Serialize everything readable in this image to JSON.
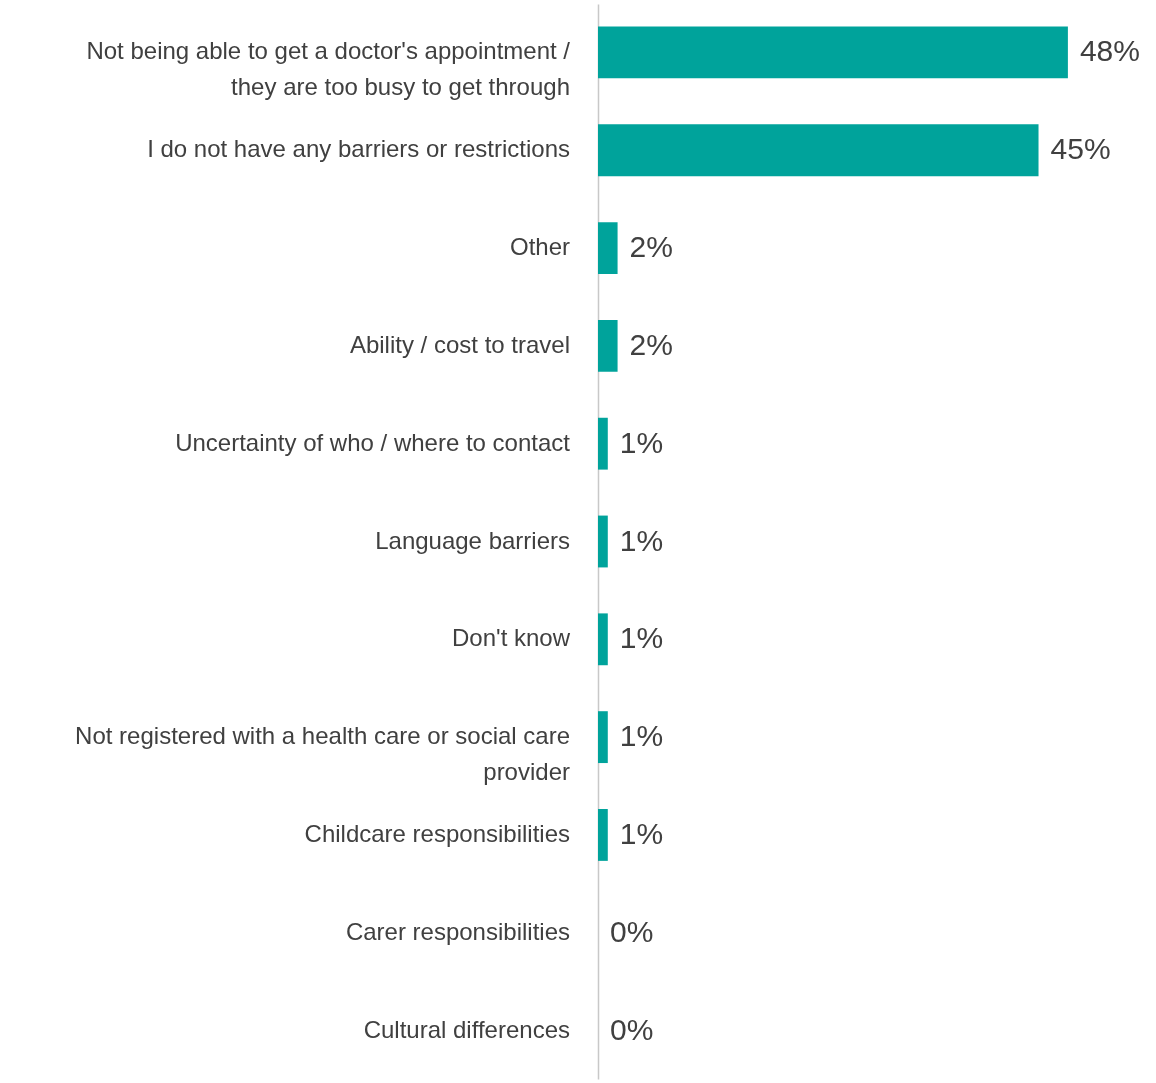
{
  "chart_data": {
    "type": "bar",
    "orientation": "horizontal",
    "categories": [
      "Not being able to get a doctor's appointment / they are too busy to get through",
      "I do not have any barriers or restrictions",
      "Other",
      "Ability / cost to travel",
      "Uncertainty of who / where to contact",
      "Language barriers",
      "Don't know",
      "Not registered with a health care or social care provider",
      "Childcare responsibilities",
      "Carer responsibilities",
      "Cultural differences"
    ],
    "values": [
      48,
      45,
      2,
      2,
      1,
      1,
      1,
      1,
      1,
      0,
      0
    ],
    "value_labels": [
      "48%",
      "45%",
      "2%",
      "2%",
      "1%",
      "1%",
      "1%",
      "1%",
      "1%",
      "0%",
      "0%"
    ],
    "color": "#00a39b",
    "xlim": [
      0,
      57
    ],
    "grid": false
  }
}
